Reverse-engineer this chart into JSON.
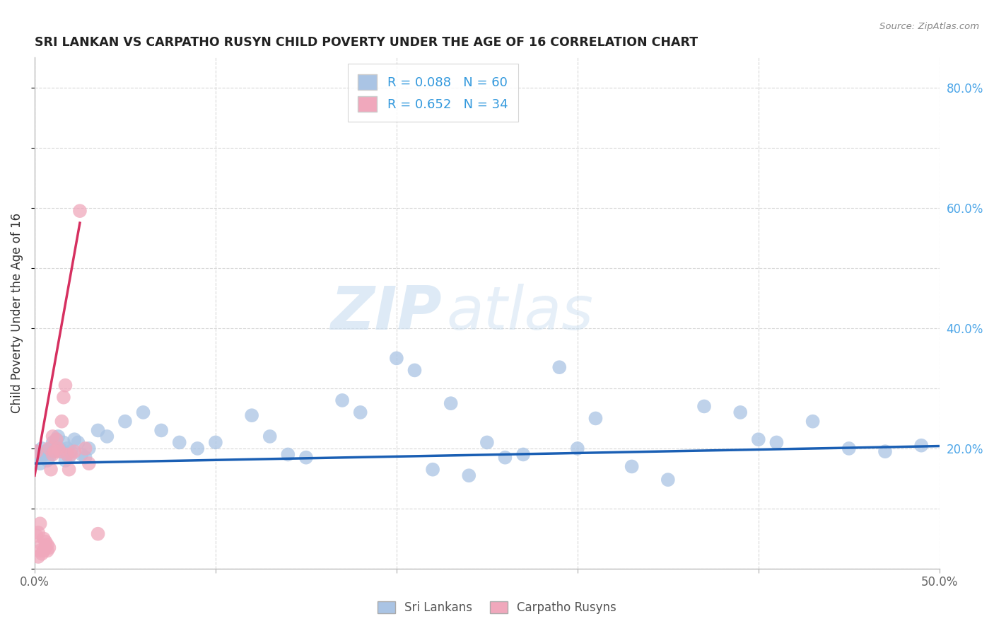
{
  "title": "SRI LANKAN VS CARPATHO RUSYN CHILD POVERTY UNDER THE AGE OF 16 CORRELATION CHART",
  "source": "Source: ZipAtlas.com",
  "ylabel": "Child Poverty Under the Age of 16",
  "xlim": [
    0.0,
    0.5
  ],
  "ylim": [
    0.0,
    0.85
  ],
  "x_ticks": [
    0.0,
    0.1,
    0.2,
    0.3,
    0.4,
    0.5
  ],
  "x_tick_labels": [
    "0.0%",
    "",
    "",
    "",
    "",
    "50.0%"
  ],
  "y_ticks": [
    0.0,
    0.2,
    0.4,
    0.6,
    0.8
  ],
  "y_tick_labels": [
    "",
    "20.0%",
    "40.0%",
    "60.0%",
    "80.0%"
  ],
  "sri_lankans_color": "#aac4e4",
  "carpatho_rusyns_color": "#f0a8bc",
  "sri_lankans_R": 0.088,
  "sri_lankans_N": 60,
  "carpatho_rusyns_R": 0.652,
  "carpatho_rusyns_N": 34,
  "legend_sri": "Sri Lankans",
  "legend_carp": "Carpatho Rusyns",
  "sri_lankans_x": [
    0.001,
    0.002,
    0.003,
    0.004,
    0.005,
    0.006,
    0.007,
    0.008,
    0.009,
    0.01,
    0.011,
    0.012,
    0.013,
    0.014,
    0.015,
    0.016,
    0.017,
    0.018,
    0.019,
    0.02,
    0.022,
    0.024,
    0.026,
    0.028,
    0.03,
    0.035,
    0.04,
    0.05,
    0.06,
    0.07,
    0.08,
    0.09,
    0.1,
    0.12,
    0.13,
    0.14,
    0.15,
    0.17,
    0.18,
    0.2,
    0.21,
    0.22,
    0.23,
    0.24,
    0.25,
    0.26,
    0.27,
    0.29,
    0.3,
    0.31,
    0.33,
    0.35,
    0.37,
    0.39,
    0.4,
    0.41,
    0.43,
    0.45,
    0.47,
    0.49
  ],
  "sri_lankans_y": [
    0.195,
    0.185,
    0.175,
    0.2,
    0.19,
    0.195,
    0.18,
    0.185,
    0.2,
    0.21,
    0.195,
    0.215,
    0.22,
    0.2,
    0.195,
    0.21,
    0.18,
    0.2,
    0.185,
    0.195,
    0.215,
    0.21,
    0.19,
    0.185,
    0.2,
    0.23,
    0.22,
    0.245,
    0.26,
    0.23,
    0.21,
    0.2,
    0.21,
    0.255,
    0.22,
    0.19,
    0.185,
    0.28,
    0.26,
    0.35,
    0.33,
    0.165,
    0.275,
    0.155,
    0.21,
    0.185,
    0.19,
    0.335,
    0.2,
    0.25,
    0.17,
    0.148,
    0.27,
    0.26,
    0.215,
    0.21,
    0.245,
    0.2,
    0.195,
    0.205
  ],
  "carpatho_rusyns_x": [
    0.001,
    0.001,
    0.002,
    0.002,
    0.003,
    0.003,
    0.004,
    0.004,
    0.005,
    0.005,
    0.006,
    0.006,
    0.007,
    0.007,
    0.008,
    0.008,
    0.009,
    0.01,
    0.01,
    0.011,
    0.012,
    0.013,
    0.014,
    0.015,
    0.016,
    0.017,
    0.018,
    0.019,
    0.02,
    0.022,
    0.025,
    0.028,
    0.03,
    0.035
  ],
  "carpatho_rusyns_y": [
    0.195,
    0.055,
    0.06,
    0.02,
    0.03,
    0.075,
    0.04,
    0.025,
    0.03,
    0.05,
    0.045,
    0.035,
    0.03,
    0.04,
    0.035,
    0.2,
    0.165,
    0.19,
    0.22,
    0.195,
    0.215,
    0.2,
    0.195,
    0.245,
    0.285,
    0.305,
    0.19,
    0.165,
    0.19,
    0.195,
    0.595,
    0.2,
    0.175,
    0.058
  ],
  "watermark_zip": "ZIP",
  "watermark_atlas": "atlas",
  "background_color": "#ffffff",
  "grid_color": "#d8d8d8",
  "title_color": "#222222",
  "axis_label_color": "#333333",
  "tick_label_color_right": "#4da6e8",
  "regression_sri_color": "#1a5fb4",
  "regression_carp_color": "#d63060",
  "regression_carp_dashed_color": "#c8c8d0"
}
